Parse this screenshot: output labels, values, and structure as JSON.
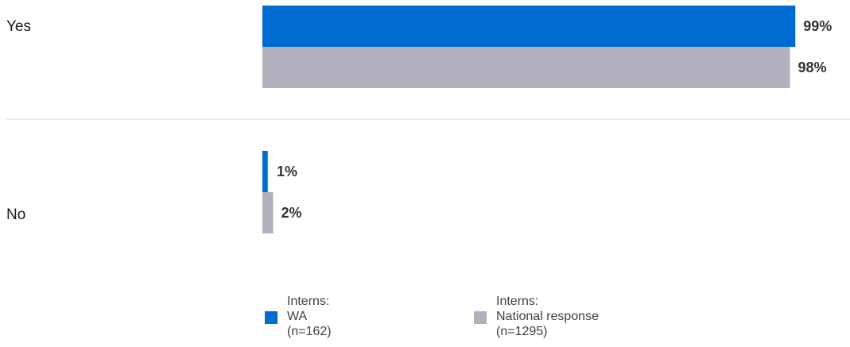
{
  "chart_data": {
    "type": "bar",
    "orientation": "horizontal",
    "categories": [
      "Yes",
      "No"
    ],
    "series": [
      {
        "name": "Interns: WA (n=162)",
        "values": [
          99,
          1
        ],
        "color": "#006BD1"
      },
      {
        "name": "Interns: National response (n=1295)",
        "values": [
          98,
          2
        ],
        "color": "#B1B1BD"
      }
    ],
    "value_suffix": "%",
    "xlim": [
      0,
      100
    ],
    "grid": false,
    "legend_position": "bottom"
  },
  "legend": [
    {
      "line1": "Interns:",
      "line2": "WA",
      "line3": "(n=162)",
      "color": "#006BD1"
    },
    {
      "line1": "Interns:",
      "line2": "National response",
      "line3": "(n=1295)",
      "color": "#B1B1BD"
    }
  ]
}
